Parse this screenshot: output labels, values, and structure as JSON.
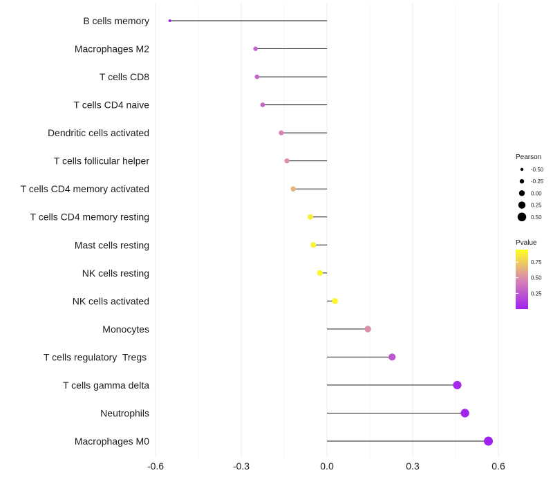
{
  "chart_data": {
    "type": "lollipop",
    "categories": [
      "B cells memory",
      "Macrophages M2",
      "T cells CD8",
      "T cells CD4 naive",
      "Dendritic cells activated",
      "T cells follicular helper",
      "T cells CD4 memory activated",
      "T cells CD4 memory resting",
      "Mast cells resting",
      "NK cells resting",
      "NK cells activated",
      "Monocytes",
      "T cells regulatory  Tregs ",
      "T cells gamma delta",
      "Neutrophils",
      "Macrophages M0"
    ],
    "pearson": [
      -0.55,
      -0.25,
      -0.245,
      -0.225,
      -0.16,
      -0.14,
      -0.118,
      -0.058,
      -0.048,
      -0.025,
      0.028,
      0.143,
      0.228,
      0.456,
      0.483,
      0.565
    ],
    "pvalue": [
      0.01,
      0.3,
      0.3,
      0.32,
      0.45,
      0.5,
      0.65,
      0.88,
      0.9,
      0.92,
      0.92,
      0.5,
      0.25,
      0.03,
      0.02,
      0.01
    ],
    "x_ticks": [
      "-0.6",
      "-0.3",
      "0.0",
      "0.3",
      "0.6"
    ],
    "x_tick_values": [
      -0.6,
      -0.3,
      0.0,
      0.3,
      0.6
    ],
    "xlim": [
      -0.6,
      0.6
    ],
    "xlabel": "",
    "ylabel": "",
    "legend": {
      "size_title": "Pearson",
      "size_entries": [
        "-0.50",
        "-0.25",
        "0.00",
        "0.25",
        "0.50"
      ],
      "size_values": [
        -0.5,
        -0.25,
        0.0,
        0.25,
        0.5
      ],
      "color_title": "Pvalue",
      "color_ticks": [
        "0.75",
        "0.50",
        "0.25"
      ],
      "color_tick_values": [
        0.75,
        0.5,
        0.25
      ],
      "color_low": "#a020f0",
      "color_mid": "#d888b0",
      "color_high": "#ffff20",
      "placement": "right"
    }
  }
}
